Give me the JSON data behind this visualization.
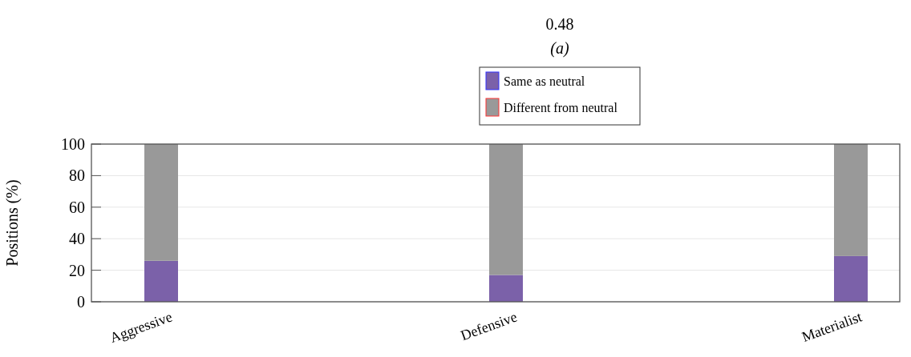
{
  "chart_data": {
    "type": "bar",
    "title": "0.48",
    "subtitle": "(a)",
    "ylabel": "Positions (%)",
    "categories": [
      "Aggressive",
      "Defensive",
      "Materialist"
    ],
    "stacked": true,
    "series": [
      {
        "name": "Same as neutral",
        "color": "#7b61a9",
        "values": [
          26,
          17,
          29
        ]
      },
      {
        "name": "Different from neutral",
        "color": "#999999",
        "values": [
          74,
          83,
          71
        ]
      }
    ],
    "ylim": [
      0,
      100
    ],
    "yticks": [
      0,
      20,
      40,
      60,
      80,
      100
    ],
    "grid": "y",
    "legend": "top"
  }
}
